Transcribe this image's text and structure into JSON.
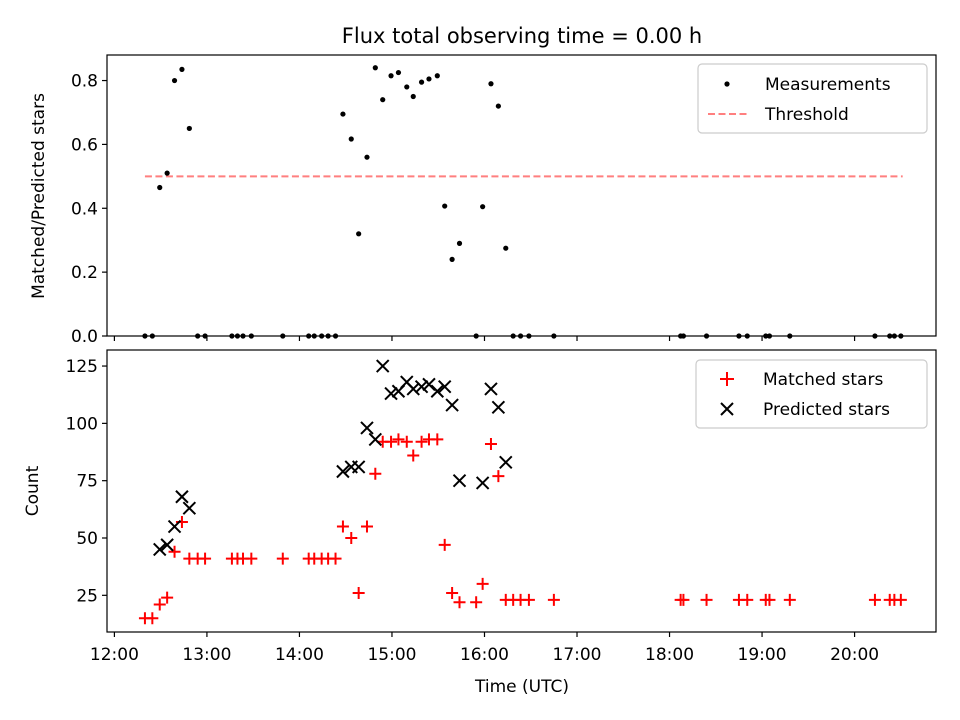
{
  "figure": {
    "title": "Flux total observing time = 0.00 h",
    "xlabel": "Time (UTC)",
    "x_ticks": [
      "12:00",
      "13:00",
      "14:00",
      "15:00",
      "16:00",
      "17:00",
      "18:00",
      "19:00",
      "20:00"
    ]
  },
  "colors": {
    "measurement": "#000000",
    "threshold": "#ff7f7f",
    "matched": "#ff0000",
    "predicted": "#000000"
  },
  "chart_data": [
    {
      "type": "scatter",
      "title": "Flux total observing time = 0.00 h",
      "xlabel": "",
      "ylabel": "Matched/Predicted stars",
      "x_unit": "hours UTC",
      "xlim": [
        11.92,
        20.88
      ],
      "ylim": [
        0,
        0.88
      ],
      "y_ticks": [
        "0.0",
        "0.2",
        "0.4",
        "0.6",
        "0.8"
      ],
      "legend_position": "top-right",
      "legend": [
        "Measurements",
        "Threshold"
      ],
      "threshold": {
        "value": 0.5,
        "x_range": [
          12.33,
          20.52
        ]
      },
      "series": [
        {
          "name": "Measurements",
          "points": [
            [
              12.33,
              0.0
            ],
            [
              12.41,
              0.0
            ],
            [
              12.49,
              0.465
            ],
            [
              12.57,
              0.51
            ],
            [
              12.65,
              0.8
            ],
            [
              12.73,
              0.835
            ],
            [
              12.81,
              0.65
            ],
            [
              12.9,
              0.0
            ],
            [
              12.98,
              0.0
            ],
            [
              13.27,
              0.0
            ],
            [
              13.33,
              0.0
            ],
            [
              13.39,
              0.0
            ],
            [
              13.48,
              0.0
            ],
            [
              13.82,
              0.0
            ],
            [
              14.1,
              0.0
            ],
            [
              14.16,
              0.0
            ],
            [
              14.24,
              0.0
            ],
            [
              14.31,
              0.0
            ],
            [
              14.39,
              0.0
            ],
            [
              14.47,
              0.695
            ],
            [
              14.56,
              0.617
            ],
            [
              14.64,
              0.32
            ],
            [
              14.73,
              0.56
            ],
            [
              14.82,
              0.84
            ],
            [
              14.9,
              0.74
            ],
            [
              14.99,
              0.815
            ],
            [
              15.07,
              0.825
            ],
            [
              15.16,
              0.78
            ],
            [
              15.23,
              0.75
            ],
            [
              15.32,
              0.795
            ],
            [
              15.4,
              0.805
            ],
            [
              15.49,
              0.815
            ],
            [
              15.57,
              0.407
            ],
            [
              15.65,
              0.24
            ],
            [
              15.73,
              0.29
            ],
            [
              15.91,
              0.0
            ],
            [
              15.98,
              0.405
            ],
            [
              16.07,
              0.79
            ],
            [
              16.15,
              0.72
            ],
            [
              16.23,
              0.275
            ],
            [
              16.31,
              0.0
            ],
            [
              16.39,
              0.0
            ],
            [
              16.48,
              0.0
            ],
            [
              16.75,
              0.0
            ],
            [
              18.12,
              0.0
            ],
            [
              18.15,
              0.0
            ],
            [
              18.4,
              0.0
            ],
            [
              18.75,
              0.0
            ],
            [
              18.84,
              0.0
            ],
            [
              19.04,
              0.0
            ],
            [
              19.08,
              0.0
            ],
            [
              19.3,
              0.0
            ],
            [
              20.22,
              0.0
            ],
            [
              20.38,
              0.0
            ],
            [
              20.43,
              0.0
            ],
            [
              20.5,
              0.0
            ]
          ]
        }
      ]
    },
    {
      "type": "scatter",
      "title": "",
      "xlabel": "Time (UTC)",
      "ylabel": "Count",
      "x_unit": "hours UTC",
      "xlim": [
        11.92,
        20.88
      ],
      "ylim": [
        9,
        132
      ],
      "y_ticks": [
        "25",
        "50",
        "75",
        "100",
        "125"
      ],
      "legend_position": "top-right",
      "legend": [
        "Matched stars",
        "Predicted stars"
      ],
      "series": [
        {
          "name": "Matched stars",
          "marker": "+",
          "points": [
            [
              12.33,
              15
            ],
            [
              12.41,
              15
            ],
            [
              12.49,
              21
            ],
            [
              12.57,
              24
            ],
            [
              12.65,
              44
            ],
            [
              12.73,
              57
            ],
            [
              12.81,
              41
            ],
            [
              12.9,
              41
            ],
            [
              12.98,
              41
            ],
            [
              13.27,
              41
            ],
            [
              13.33,
              41
            ],
            [
              13.39,
              41
            ],
            [
              13.48,
              41
            ],
            [
              13.82,
              41
            ],
            [
              14.1,
              41
            ],
            [
              14.16,
              41
            ],
            [
              14.24,
              41
            ],
            [
              14.31,
              41
            ],
            [
              14.39,
              41
            ],
            [
              14.47,
              55
            ],
            [
              14.56,
              50
            ],
            [
              14.64,
              26
            ],
            [
              14.73,
              55
            ],
            [
              14.82,
              78
            ],
            [
              14.9,
              92
            ],
            [
              14.99,
              92
            ],
            [
              15.07,
              93
            ],
            [
              15.16,
              92
            ],
            [
              15.23,
              86
            ],
            [
              15.32,
              92
            ],
            [
              15.4,
              93
            ],
            [
              15.49,
              93
            ],
            [
              15.57,
              47
            ],
            [
              15.65,
              26
            ],
            [
              15.73,
              22
            ],
            [
              15.91,
              22
            ],
            [
              15.98,
              30
            ],
            [
              16.07,
              91
            ],
            [
              16.15,
              77
            ],
            [
              16.23,
              23
            ],
            [
              16.31,
              23
            ],
            [
              16.39,
              23
            ],
            [
              16.48,
              23
            ],
            [
              16.75,
              23
            ],
            [
              18.12,
              23
            ],
            [
              18.15,
              23
            ],
            [
              18.4,
              23
            ],
            [
              18.75,
              23
            ],
            [
              18.84,
              23
            ],
            [
              19.04,
              23
            ],
            [
              19.08,
              23
            ],
            [
              19.3,
              23
            ],
            [
              20.22,
              23
            ],
            [
              20.38,
              23
            ],
            [
              20.43,
              23
            ],
            [
              20.5,
              23
            ]
          ]
        },
        {
          "name": "Predicted stars",
          "marker": "x",
          "points": [
            [
              12.49,
              45
            ],
            [
              12.57,
              47
            ],
            [
              12.65,
              55
            ],
            [
              12.73,
              68
            ],
            [
              12.81,
              63
            ],
            [
              14.47,
              79
            ],
            [
              14.56,
              81
            ],
            [
              14.64,
              81
            ],
            [
              14.73,
              98
            ],
            [
              14.82,
              93
            ],
            [
              14.9,
              125
            ],
            [
              14.99,
              113
            ],
            [
              15.07,
              114
            ],
            [
              15.16,
              118
            ],
            [
              15.23,
              115
            ],
            [
              15.32,
              116
            ],
            [
              15.4,
              117
            ],
            [
              15.49,
              114
            ],
            [
              15.57,
              116
            ],
            [
              15.65,
              108
            ],
            [
              15.73,
              75
            ],
            [
              15.98,
              74
            ],
            [
              16.07,
              115
            ],
            [
              16.15,
              107
            ],
            [
              16.23,
              83
            ]
          ]
        }
      ]
    }
  ]
}
